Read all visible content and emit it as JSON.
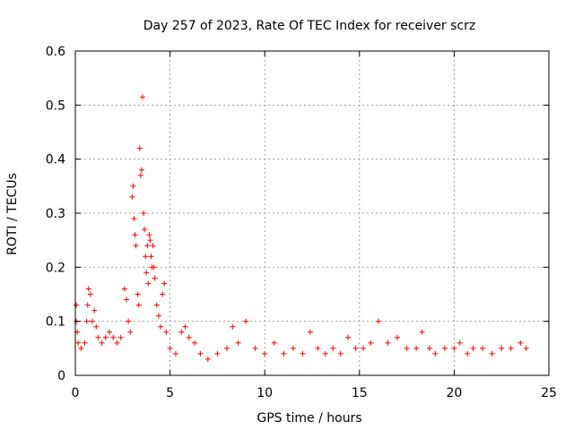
{
  "chart_data": {
    "type": "scatter",
    "title": "Day 257 of 2023, Rate Of TEC Index for receiver scrz",
    "xlabel": "GPS time / hours",
    "ylabel": "ROTI / TECUs",
    "xlim": [
      0,
      25
    ],
    "ylim": [
      0,
      0.6
    ],
    "xticks": [
      0,
      5,
      10,
      15,
      20,
      25
    ],
    "yticks": [
      0,
      0.1,
      0.2,
      0.3,
      0.4,
      0.5,
      0.6
    ],
    "ytick_labels": [
      "0",
      "0.1",
      "0.2",
      "0.3",
      "0.4",
      "0.5",
      "0.6"
    ],
    "xtick_labels": [
      "0",
      "5",
      "10",
      "15",
      "20",
      "25"
    ],
    "grid": true,
    "marker": "+",
    "color": "#ff0000",
    "points": [
      [
        0.05,
        0.13
      ],
      [
        0.05,
        0.1
      ],
      [
        0.1,
        0.08
      ],
      [
        0.15,
        0.06
      ],
      [
        0.3,
        0.05
      ],
      [
        0.5,
        0.06
      ],
      [
        0.6,
        0.1
      ],
      [
        0.65,
        0.13
      ],
      [
        0.7,
        0.16
      ],
      [
        0.8,
        0.15
      ],
      [
        0.9,
        0.1
      ],
      [
        1.0,
        0.12
      ],
      [
        1.1,
        0.09
      ],
      [
        1.2,
        0.07
      ],
      [
        1.4,
        0.06
      ],
      [
        1.6,
        0.07
      ],
      [
        1.8,
        0.08
      ],
      [
        2.0,
        0.07
      ],
      [
        2.2,
        0.06
      ],
      [
        2.4,
        0.07
      ],
      [
        2.6,
        0.16
      ],
      [
        2.7,
        0.14
      ],
      [
        2.8,
        0.1
      ],
      [
        2.9,
        0.08
      ],
      [
        3.0,
        0.33
      ],
      [
        3.05,
        0.35
      ],
      [
        3.1,
        0.29
      ],
      [
        3.15,
        0.26
      ],
      [
        3.2,
        0.24
      ],
      [
        3.3,
        0.15
      ],
      [
        3.35,
        0.13
      ],
      [
        3.4,
        0.42
      ],
      [
        3.45,
        0.37
      ],
      [
        3.5,
        0.38
      ],
      [
        3.55,
        0.515
      ],
      [
        3.6,
        0.3
      ],
      [
        3.65,
        0.27
      ],
      [
        3.7,
        0.22
      ],
      [
        3.75,
        0.19
      ],
      [
        3.8,
        0.24
      ],
      [
        3.85,
        0.17
      ],
      [
        3.9,
        0.26
      ],
      [
        3.95,
        0.25
      ],
      [
        4.0,
        0.22
      ],
      [
        4.05,
        0.2
      ],
      [
        4.1,
        0.24
      ],
      [
        4.15,
        0.2
      ],
      [
        4.2,
        0.18
      ],
      [
        4.3,
        0.13
      ],
      [
        4.4,
        0.11
      ],
      [
        4.5,
        0.09
      ],
      [
        4.6,
        0.15
      ],
      [
        4.7,
        0.17
      ],
      [
        4.8,
        0.08
      ],
      [
        5.0,
        0.05
      ],
      [
        5.3,
        0.04
      ],
      [
        5.6,
        0.08
      ],
      [
        5.8,
        0.09
      ],
      [
        6.0,
        0.07
      ],
      [
        6.3,
        0.06
      ],
      [
        6.6,
        0.04
      ],
      [
        7.0,
        0.03
      ],
      [
        7.5,
        0.04
      ],
      [
        8.0,
        0.05
      ],
      [
        8.3,
        0.09
      ],
      [
        8.6,
        0.06
      ],
      [
        9.0,
        0.1
      ],
      [
        9.5,
        0.05
      ],
      [
        10.0,
        0.04
      ],
      [
        10.5,
        0.06
      ],
      [
        11.0,
        0.04
      ],
      [
        11.5,
        0.05
      ],
      [
        12.0,
        0.04
      ],
      [
        12.4,
        0.08
      ],
      [
        12.8,
        0.05
      ],
      [
        13.2,
        0.04
      ],
      [
        13.6,
        0.05
      ],
      [
        14.0,
        0.04
      ],
      [
        14.4,
        0.07
      ],
      [
        14.8,
        0.05
      ],
      [
        15.2,
        0.05
      ],
      [
        15.6,
        0.06
      ],
      [
        16.0,
        0.1
      ],
      [
        16.5,
        0.06
      ],
      [
        17.0,
        0.07
      ],
      [
        17.5,
        0.05
      ],
      [
        18.0,
        0.05
      ],
      [
        18.3,
        0.08
      ],
      [
        18.7,
        0.05
      ],
      [
        19.0,
        0.04
      ],
      [
        19.5,
        0.05
      ],
      [
        20.0,
        0.05
      ],
      [
        20.3,
        0.06
      ],
      [
        20.7,
        0.04
      ],
      [
        21.0,
        0.05
      ],
      [
        21.5,
        0.05
      ],
      [
        22.0,
        0.04
      ],
      [
        22.5,
        0.05
      ],
      [
        23.0,
        0.05
      ],
      [
        23.5,
        0.06
      ],
      [
        23.8,
        0.05
      ]
    ]
  }
}
